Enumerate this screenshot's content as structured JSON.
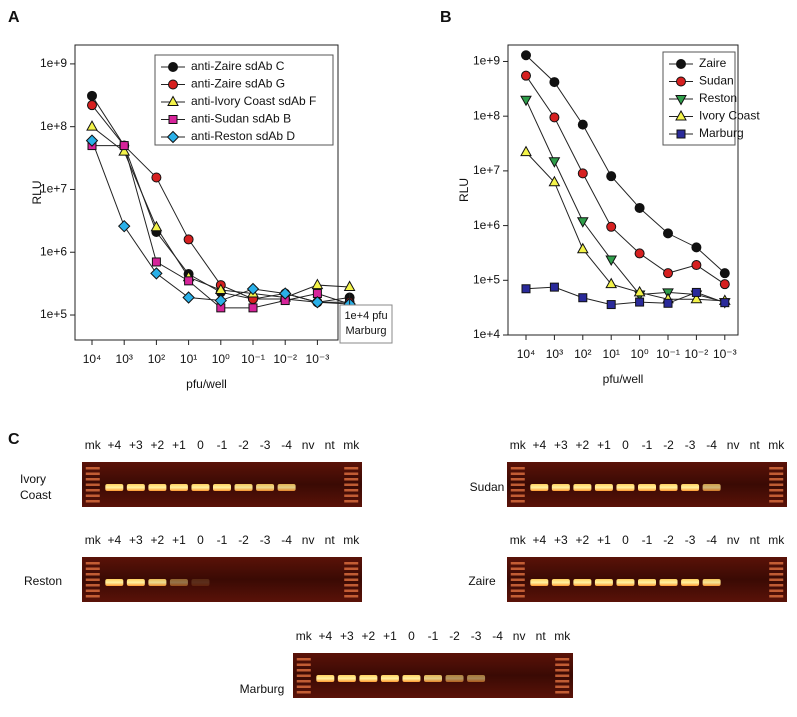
{
  "chart_data": [
    {
      "type": "line",
      "panel": "A",
      "xlabel": "pfu/well",
      "ylabel": "RLU",
      "log_y": true,
      "categories": [
        "10⁴",
        "10³",
        "10²",
        "10¹",
        "10⁰",
        "10⁻¹",
        "10⁻²",
        "10⁻³",
        null
      ],
      "annotation": [
        "1e+4 pfu",
        "Marburg"
      ],
      "ylim": [
        40000,
        2000000000
      ],
      "yticks": [
        {
          "value": 100000,
          "label": "1e+5"
        },
        {
          "value": 1000000,
          "label": "1e+6"
        },
        {
          "value": 10000000,
          "label": "1e+7"
        },
        {
          "value": 100000000,
          "label": "1e+8"
        },
        {
          "value": 1000000000,
          "label": "1e+9"
        }
      ],
      "legend": "upper right",
      "series": [
        {
          "name": "anti-Zaire sdAb C",
          "color": "#111111",
          "marker": "circle",
          "values": [
            310000000,
            50000000,
            2100000,
            450000,
            230000,
            180000,
            180000,
            160000,
            190000
          ]
        },
        {
          "name": "anti-Zaire sdAb G",
          "color": "#d62020",
          "marker": "circle",
          "values": [
            220000000,
            50000000,
            15500000,
            1600000,
            300000,
            180000,
            220000,
            160000,
            160000
          ]
        },
        {
          "name": "anti-Ivory Coast sdAb F",
          "color": "#f3f34a",
          "marker": "triangle",
          "values": [
            100000000,
            40000000,
            2500000,
            400000,
            250000,
            220000,
            190000,
            300000,
            280000
          ]
        },
        {
          "name": "anti-Sudan sdAb B",
          "color": "#d6249a",
          "marker": "square",
          "values": [
            50000000,
            50000000,
            700000,
            350000,
            130000,
            130000,
            170000,
            220000,
            150000
          ]
        },
        {
          "name": "anti-Reston sdAb D",
          "color": "#2ab0e8",
          "marker": "diamond",
          "values": [
            60000000,
            2600000,
            460000,
            190000,
            170000,
            260000,
            220000,
            160000,
            150000
          ]
        }
      ]
    },
    {
      "type": "line",
      "panel": "B",
      "xlabel": "pfu/well",
      "ylabel": "RLU",
      "log_y": true,
      "categories": [
        "10⁴",
        "10³",
        "10²",
        "10¹",
        "10⁰",
        "10⁻¹",
        "10⁻²",
        "10⁻³"
      ],
      "ylim": [
        10000,
        2000000000
      ],
      "yticks": [
        {
          "value": 10000,
          "label": "1e+4"
        },
        {
          "value": 100000,
          "label": "1e+5"
        },
        {
          "value": 1000000,
          "label": "1e+6"
        },
        {
          "value": 10000000,
          "label": "1e+7"
        },
        {
          "value": 100000000,
          "label": "1e+8"
        },
        {
          "value": 1000000000,
          "label": "1e+9"
        }
      ],
      "legend": "upper right",
      "series": [
        {
          "name": "Zaire",
          "color": "#111111",
          "marker": "circle",
          "values": [
            1300000000,
            420000000,
            70000000,
            8000000,
            2100000,
            720000,
            400000,
            135000
          ]
        },
        {
          "name": "Sudan",
          "color": "#d62020",
          "marker": "circle",
          "values": [
            550000000,
            95000000,
            9000000,
            950000,
            310000,
            135000,
            190000,
            85000
          ]
        },
        {
          "name": "Reston",
          "color": "#2e9e4a",
          "marker": "triangle-down",
          "values": [
            200000000,
            15000000,
            1200000,
            240000,
            55000,
            60000,
            55000,
            40000
          ]
        },
        {
          "name": "Ivory Coast",
          "color": "#f3f34a",
          "marker": "triangle",
          "values": [
            22000000,
            6200000,
            370000,
            85000,
            60000,
            45000,
            45000,
            42000
          ]
        },
        {
          "name": "Marburg",
          "color": "#2a2a9a",
          "marker": "square",
          "values": [
            70000,
            75000,
            48000,
            36000,
            40000,
            38000,
            60000,
            39000
          ]
        }
      ]
    }
  ],
  "gels": {
    "panel": "C",
    "lanes": [
      "mk",
      "+4",
      "+3",
      "+2",
      "+1",
      "0",
      "-1",
      "-2",
      "-3",
      "-4",
      "nv",
      "nt",
      "mk"
    ],
    "items": [
      {
        "name": [
          "Ivory",
          "Coast"
        ]
      },
      {
        "name": [
          "Sudan"
        ]
      },
      {
        "name": [
          "Reston"
        ]
      },
      {
        "name": [
          "Zaire"
        ]
      },
      {
        "name": [
          "Marburg"
        ]
      }
    ]
  }
}
